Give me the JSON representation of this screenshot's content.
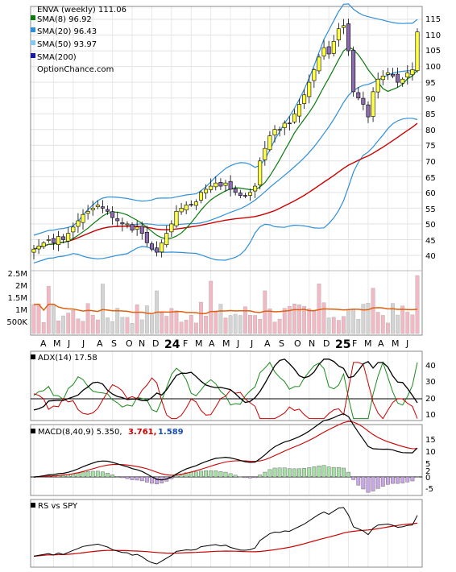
{
  "colors": {
    "sma8": "#0a7a0a",
    "sma20": "#2f8fd8",
    "sma50": "#cc0000",
    "sma200": "#1a1aa0",
    "bollinger": "#2f8fd8",
    "up_candle": "#ffff44",
    "down_candle": "#8c6bb0",
    "volume_up": "#f2b8c4",
    "volume_down": "#d4d4d4",
    "volume_avg": "#e06010",
    "adx": "#000000",
    "plus_di": "#1a8a1a",
    "minus_di": "#cc0000",
    "macd_line": "#000000",
    "signal_line": "#cc0000",
    "hist_pos": "#a6e0a6",
    "hist_neg": "#c9a6e6",
    "rs_line": "#000000",
    "rs_ma": "#cc0000",
    "macd_value1": "#cc0000",
    "macd_value2": "#1a4fb0"
  },
  "main": {
    "title": "ENVA (weekly) 111.06",
    "legend": [
      {
        "key": "sma8",
        "label": "SMA(8) 96.92"
      },
      {
        "key": "sma20",
        "label": "SMA(20) 96.43"
      },
      {
        "key": "sma50",
        "label": "SMA(50) 93.97"
      },
      {
        "key": "sma200",
        "label": "SMA(200)"
      }
    ],
    "watermark": "OptionChance.com",
    "price_ticks": [
      "115",
      "110",
      "105",
      "100",
      "95",
      "90",
      "85",
      "80",
      "75",
      "70",
      "65",
      "60",
      "55",
      "50",
      "45",
      "40"
    ],
    "volume_ticks": [
      "2.5M",
      "2M",
      "1.5M",
      "1M",
      "500K"
    ],
    "x_ticks": [
      "A",
      "M",
      "J",
      "J",
      "A",
      "S",
      "O",
      "N",
      "D",
      "24",
      "F",
      "M",
      "A",
      "M",
      "J",
      "J",
      "A",
      "S",
      "O",
      "N",
      "D",
      "25",
      "F",
      "M",
      "A",
      "M",
      "J"
    ]
  },
  "adx": {
    "label": "ADX(14) 17.58",
    "ticks": [
      "40",
      "30",
      "20",
      "10"
    ]
  },
  "macd": {
    "label": "MACD(8,40,9) 5.350,",
    "value1": "3.761,",
    "value2": "1.589",
    "ticks": [
      "15",
      "10",
      "5",
      "2",
      "0",
      "-5"
    ]
  },
  "rs": {
    "label": "RS vs SPY"
  },
  "chart_data": {
    "type": "line",
    "ticker": "ENVA",
    "interval": "weekly",
    "last_close": 111.06,
    "price_axis_range": [
      37,
      119
    ],
    "volume_axis_max": "2.5M",
    "price_series": {
      "name": "ENVA weekly close (approx.)",
      "values": [
        42,
        43,
        44,
        45,
        44,
        46,
        45,
        47,
        49,
        51,
        53,
        54,
        55,
        56,
        55,
        54,
        52,
        51,
        50,
        50,
        48,
        49,
        47,
        44,
        42,
        41,
        44,
        47,
        50,
        54,
        55,
        56,
        56,
        57,
        60,
        61,
        62,
        63,
        62,
        63,
        61,
        60,
        59,
        59,
        60,
        62,
        70,
        74,
        78,
        80,
        80,
        82,
        82,
        85,
        88,
        91,
        95,
        99,
        103,
        106,
        104,
        108,
        112,
        113,
        105,
        92,
        90,
        88,
        84,
        92,
        96,
        97,
        98,
        97,
        95,
        96,
        98,
        99,
        111
      ]
    },
    "sma8": {
      "name": "SMA(8)",
      "value": 96.92
    },
    "sma20": {
      "name": "SMA(20)",
      "value": 96.43
    },
    "sma50": {
      "name": "SMA(50)",
      "value": 93.97
    },
    "sma200": {
      "name": "SMA(200)"
    },
    "adx_indicator": {
      "name": "ADX(14)",
      "value": 17.58
    },
    "macd_indicator": {
      "name": "MACD(8,40,9)",
      "macd": 5.35,
      "signal": 3.761,
      "histogram": 1.589
    }
  }
}
